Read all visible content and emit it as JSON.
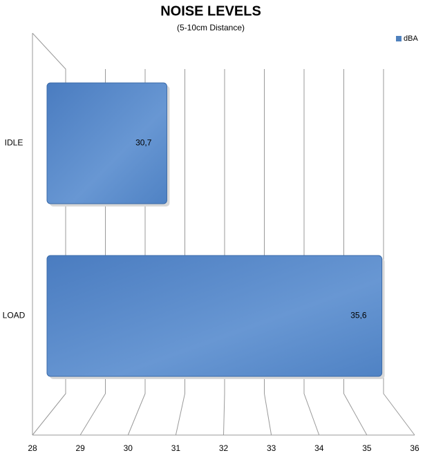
{
  "chart_data": {
    "type": "bar",
    "orientation": "horizontal",
    "title": "NOISE LEVELS",
    "subtitle": "(5-10cm Distance)",
    "categories": [
      "IDLE",
      "LOAD"
    ],
    "series": [
      {
        "name": "dBA",
        "color": "#4f81bd",
        "values": [
          30.7,
          35.6
        ],
        "value_labels": [
          "30,7",
          "35,6"
        ]
      }
    ],
    "xlim": [
      28,
      36
    ],
    "xticks": [
      28,
      29,
      30,
      31,
      32,
      33,
      34,
      35,
      36
    ],
    "grid": true,
    "legend": "top-right"
  }
}
